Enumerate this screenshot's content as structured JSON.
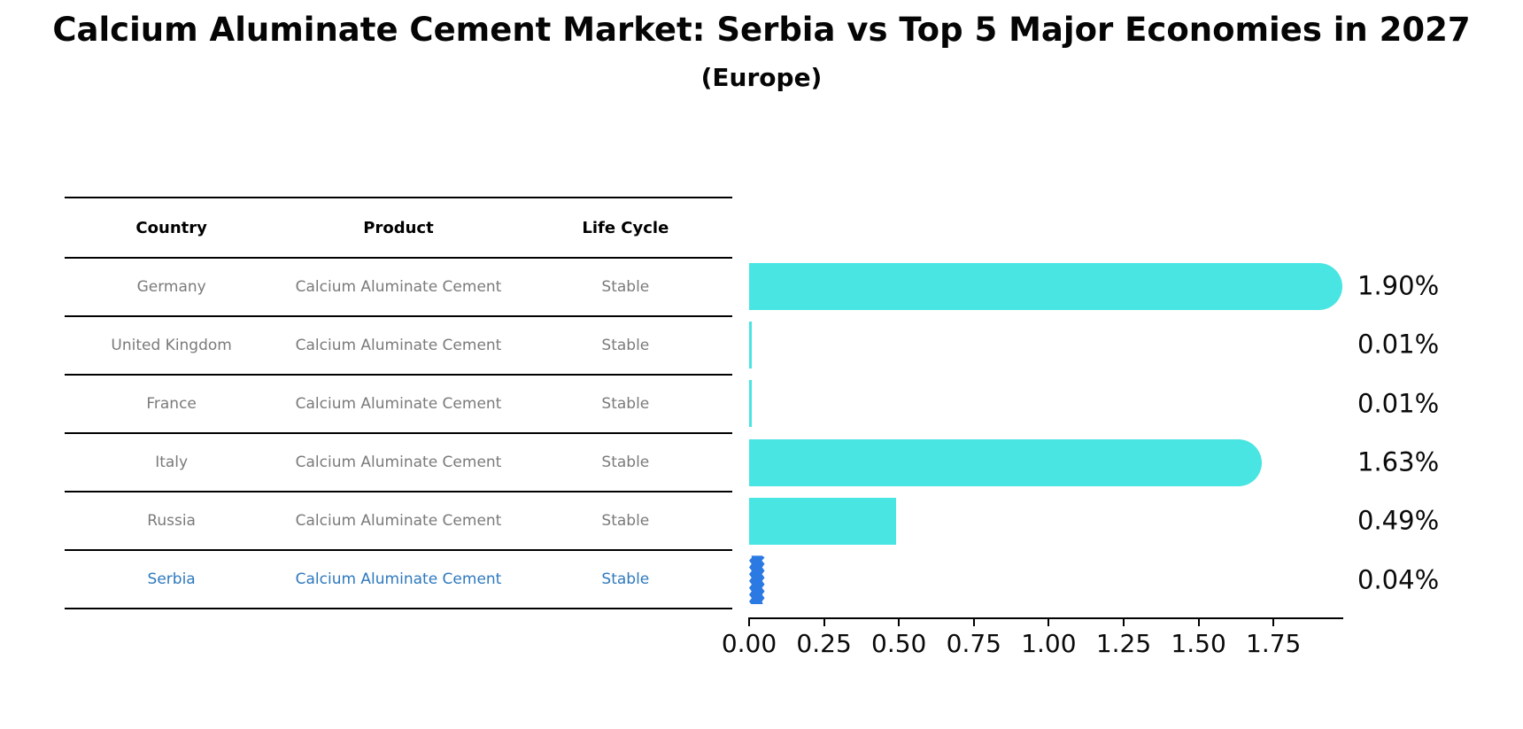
{
  "title": "Calcium Aluminate Cement Market: Serbia vs Top 5 Major Economies in 2027",
  "subtitle": "(Europe)",
  "table": {
    "headers": [
      "Country",
      "Product",
      "Life Cycle"
    ],
    "rows": [
      {
        "country": "Germany",
        "product": "Calcium Aluminate Cement",
        "life_cycle": "Stable",
        "highlighted": false
      },
      {
        "country": "United Kingdom",
        "product": "Calcium Aluminate Cement",
        "life_cycle": "Stable",
        "highlighted": false
      },
      {
        "country": "France",
        "product": "Calcium Aluminate Cement",
        "life_cycle": "Stable",
        "highlighted": false
      },
      {
        "country": "Italy",
        "product": "Calcium Aluminate Cement",
        "life_cycle": "Stable",
        "highlighted": false
      },
      {
        "country": "Russia",
        "product": "Calcium Aluminate Cement",
        "life_cycle": "Stable",
        "highlighted": false
      },
      {
        "country": "Serbia",
        "product": "Calcium Aluminate Cement",
        "life_cycle": "Stable",
        "highlighted": true
      }
    ]
  },
  "chart_data": {
    "type": "bar",
    "orientation": "horizontal",
    "title": "Calcium Aluminate Cement Market: Serbia vs Top 5 Major Economies in 2027",
    "subtitle": "(Europe)",
    "categories": [
      "Germany",
      "United Kingdom",
      "France",
      "Italy",
      "Russia",
      "Serbia"
    ],
    "values": [
      1.9,
      0.01,
      0.01,
      1.63,
      0.49,
      0.04
    ],
    "value_labels": [
      "1.90%",
      "0.01%",
      "0.01%",
      "1.63%",
      "0.49%",
      "0.04%"
    ],
    "xticks": [
      "0.00",
      "0.25",
      "0.50",
      "0.75",
      "1.00",
      "1.25",
      "1.50",
      "1.75"
    ],
    "xtick_values": [
      0.0,
      0.25,
      0.5,
      0.75,
      1.0,
      1.25,
      1.5,
      1.75
    ],
    "xlim": [
      0,
      2.0
    ],
    "grid": false,
    "bar_color": "#48e5e3",
    "highlight_category": "Serbia",
    "highlight_bar_color": "#2b79e3",
    "highlight_text_color": "#2e79bd"
  }
}
